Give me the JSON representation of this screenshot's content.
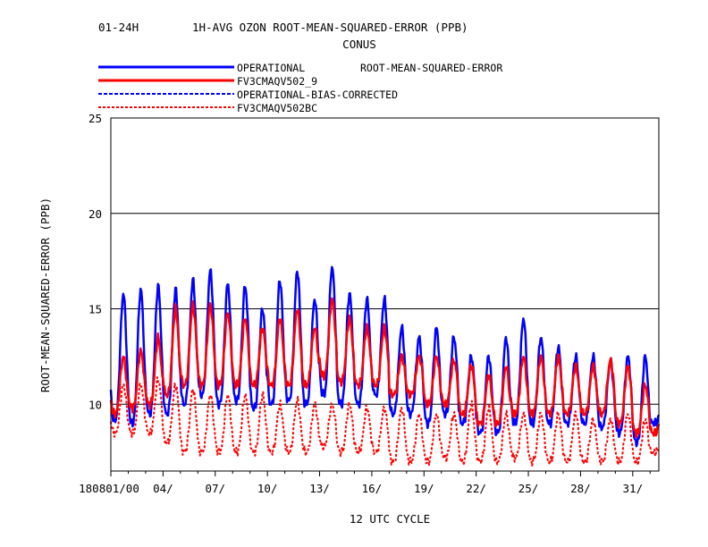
{
  "chart_data": {
    "type": "line",
    "title_left": "01-24H",
    "title_main": "1H-AVG OZON ROOT-MEAN-SQUARED-ERROR (PPB)",
    "subtitle": "CONUS",
    "xlabel": "12 UTC CYCLE",
    "ylabel": "ROOT-MEAN-SQUARED-ERROR (PPB)",
    "legend_caption": "ROOT-MEAN-SQUARED-ERROR",
    "legend_position": "top-left",
    "ylim": [
      6.5,
      25
    ],
    "xlim": [
      0,
      31.5
    ],
    "yticks": [
      10,
      15,
      20,
      25
    ],
    "xtick_positions": [
      0,
      3,
      6,
      9,
      12,
      15,
      18,
      21,
      24,
      27,
      30
    ],
    "xtick_labels": [
      "180801/00",
      "04/",
      "07/",
      "10/",
      "13/",
      "16/",
      "19/",
      "22/",
      "25/",
      "28/",
      "31/"
    ],
    "grid": "horizontal",
    "x_units": "days since 2018-08-01 00Z",
    "series": [
      {
        "name": "OPERATIONAL",
        "color": "#0000ff",
        "style": "solid",
        "daily_peak": [
          15.8,
          16.0,
          16.2,
          16.0,
          16.5,
          17.0,
          16.3,
          16.2,
          15.0,
          16.5,
          17.0,
          15.5,
          17.2,
          15.8,
          15.5,
          15.5,
          14.0,
          13.5,
          14.0,
          13.5,
          12.5,
          12.5,
          13.5,
          14.5,
          13.5,
          13.0,
          12.5,
          12.5,
          12.3,
          12.5,
          12.5,
          10.0
        ],
        "daily_min": [
          9.2,
          9.0,
          9.5,
          9.5,
          10.0,
          10.5,
          10.0,
          10.2,
          9.8,
          10.0,
          10.2,
          10.0,
          10.5,
          10.0,
          10.0,
          10.5,
          9.5,
          9.5,
          9.0,
          9.5,
          9.0,
          8.5,
          8.5,
          9.0,
          9.0,
          9.0,
          9.0,
          9.0,
          8.8,
          8.5,
          8.0,
          9.0
        ]
      },
      {
        "name": "FV3CMAQV502_9",
        "color": "#ff0000",
        "style": "solid",
        "daily_peak": [
          12.5,
          12.8,
          13.5,
          15.0,
          15.2,
          15.2,
          14.8,
          14.5,
          14.0,
          14.5,
          15.0,
          14.0,
          15.5,
          14.5,
          14.0,
          14.0,
          12.5,
          12.5,
          12.5,
          12.3,
          12.0,
          11.5,
          12.0,
          12.5,
          12.5,
          12.5,
          12.0,
          12.0,
          12.3,
          12.0,
          11.0,
          9.5
        ],
        "daily_min": [
          9.5,
          9.8,
          10.0,
          10.5,
          11.0,
          11.0,
          11.0,
          11.0,
          11.0,
          11.0,
          11.0,
          11.0,
          11.5,
          11.2,
          11.0,
          11.0,
          10.5,
          10.5,
          10.0,
          10.0,
          9.5,
          9.0,
          9.0,
          9.5,
          9.5,
          9.5,
          9.5,
          9.5,
          9.5,
          9.0,
          8.5,
          8.5
        ]
      },
      {
        "name": "OPERATIONAL-BIAS-CORRECTED",
        "color": "#0000ff",
        "style": "dashed",
        "daily_peak": [],
        "daily_min": []
      },
      {
        "name": "FV3CMAQV502BC",
        "color": "#ff0000",
        "style": "dotted",
        "daily_peak": [
          11.0,
          11.0,
          11.3,
          11.0,
          10.8,
          10.5,
          10.5,
          10.5,
          10.5,
          10.0,
          10.2,
          10.0,
          10.0,
          10.0,
          9.8,
          9.8,
          9.8,
          9.5,
          9.5,
          9.5,
          10.0,
          9.8,
          9.5,
          9.5,
          9.5,
          9.5,
          9.5,
          9.2,
          9.2,
          9.5,
          9.2,
          8.0
        ],
        "daily_min": [
          8.5,
          8.5,
          8.5,
          8.0,
          7.5,
          7.5,
          7.5,
          7.5,
          7.5,
          7.5,
          7.5,
          7.5,
          7.8,
          7.5,
          7.5,
          7.5,
          7.0,
          7.0,
          7.0,
          7.2,
          7.0,
          7.0,
          7.0,
          7.2,
          7.0,
          7.0,
          7.0,
          7.0,
          7.0,
          7.0,
          7.0,
          7.5
        ]
      }
    ]
  }
}
